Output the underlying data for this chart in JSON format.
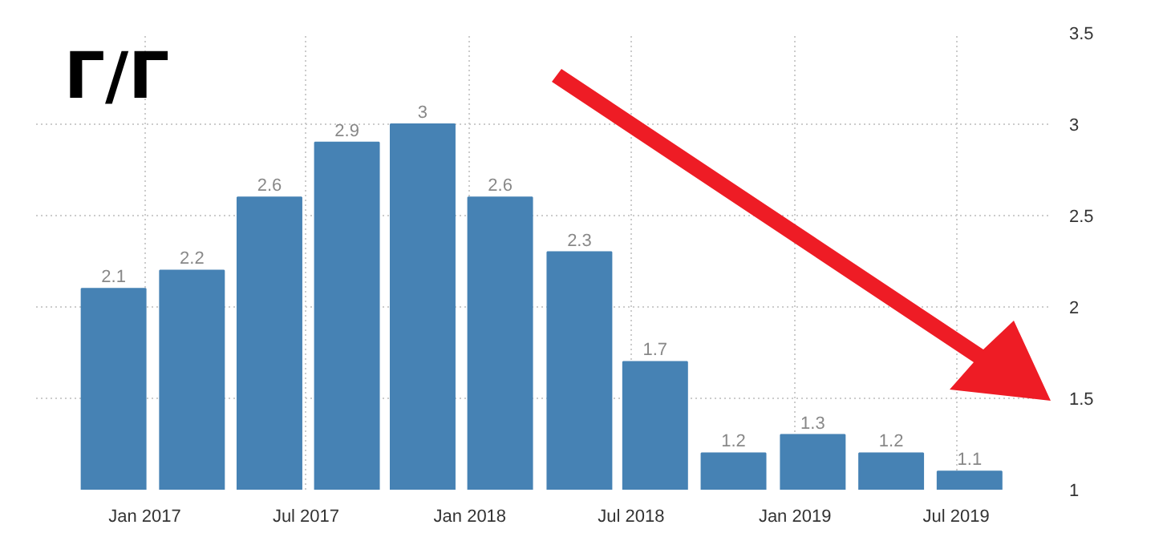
{
  "chart_data": {
    "type": "bar",
    "title": "Г/Г",
    "x": [
      "2016-11-27",
      "2017-02-23",
      "2017-05-21",
      "2017-08-16",
      "2017-11-09",
      "2018-02-04",
      "2018-05-04",
      "2018-07-28",
      "2018-10-24",
      "2019-01-21",
      "2019-04-19",
      "2019-07-16"
    ],
    "values": [
      2.1,
      2.2,
      2.6,
      2.9,
      3,
      2.6,
      2.3,
      1.7,
      1.2,
      1.3,
      1.2,
      1.1
    ],
    "color": "#4682b4",
    "data_labels": true,
    "xlim": [
      "2016-09-01",
      "2019-10-16"
    ],
    "xticks": [
      {
        "value": "2017-01-01",
        "label": "Jan 2017"
      },
      {
        "value": "2017-07-01",
        "label": "Jul 2017"
      },
      {
        "value": "2018-01-01",
        "label": "Jan 2018"
      },
      {
        "value": "2018-07-01",
        "label": "Jul 2018"
      },
      {
        "value": "2019-01-01",
        "label": "Jan 2019"
      },
      {
        "value": "2019-07-01",
        "label": "Jul 2019"
      }
    ],
    "ylim": [
      1,
      3.5
    ],
    "yticks": [
      1,
      1.5,
      2,
      2.5,
      3,
      3.5
    ],
    "grid": true
  }
}
